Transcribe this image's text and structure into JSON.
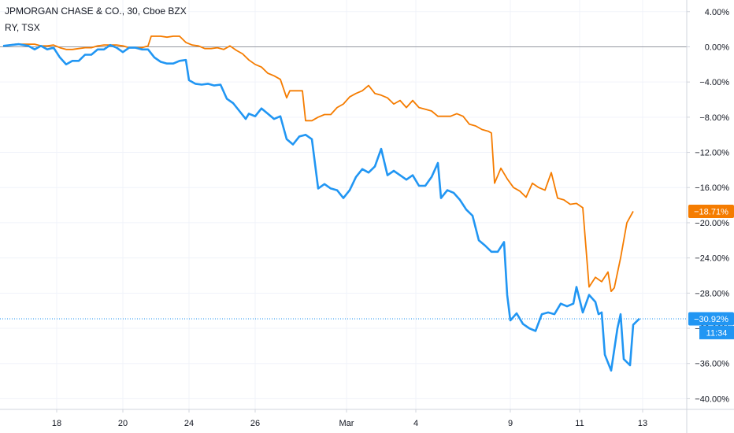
{
  "legend": {
    "main": "JPMORGAN CHASE & CO., 30, Cboe BZX",
    "compare": "RY, TSX"
  },
  "colors": {
    "jpm": "#2196f3",
    "ry": "#f57c00",
    "grid": "#f0f3fa",
    "axis": "#d1d4dc",
    "zero_line": "#9598a1",
    "text": "#131722"
  },
  "labels": {
    "jpm_last": "−30.92%",
    "ry_last": "−18.71%",
    "countdown": "11:34"
  },
  "chart_data": {
    "type": "line",
    "title": "JPMORGAN CHASE & CO., 30, Cboe BZX",
    "ylim": [
      -40.5,
      5.5
    ],
    "y_scale": "percent",
    "y_ticks": [
      {
        "value": 4,
        "label": "4.00%"
      },
      {
        "value": 0,
        "label": "0.00%"
      },
      {
        "value": -4,
        "label": "−4.00%"
      },
      {
        "value": -8,
        "label": "−8.00%"
      },
      {
        "value": -12,
        "label": "−12.00%"
      },
      {
        "value": -16,
        "label": "−16.00%"
      },
      {
        "value": -20,
        "label": "−20.00%"
      },
      {
        "value": -24,
        "label": "−24.00%"
      },
      {
        "value": -28,
        "label": "−28.00%"
      },
      {
        "value": -32,
        "label": "−32.00%"
      },
      {
        "value": -36,
        "label": "−36.00%"
      },
      {
        "value": -40,
        "label": "−40.00%"
      }
    ],
    "x_ticks": [
      {
        "index": 17,
        "label": "18"
      },
      {
        "index": 38,
        "label": "20"
      },
      {
        "index": 59,
        "label": "24"
      },
      {
        "index": 80,
        "label": "26"
      },
      {
        "index": 109,
        "label": "Mar"
      },
      {
        "index": 131,
        "label": "4"
      },
      {
        "index": 161,
        "label": "9"
      },
      {
        "index": 183,
        "label": "11"
      },
      {
        "index": 203,
        "label": "13"
      }
    ],
    "x_count": 216,
    "grid": true,
    "legend": "top-left",
    "series": [
      {
        "name": "JPMORGAN CHASE & CO., 30, Cboe BZX",
        "last": -30.92,
        "points": [
          [
            0,
            0.1
          ],
          [
            5,
            0.3
          ],
          [
            8,
            0.1
          ],
          [
            10,
            -0.3
          ],
          [
            12,
            0.1
          ],
          [
            14,
            -0.3
          ],
          [
            16,
            -0.1
          ],
          [
            18,
            -1.2
          ],
          [
            20,
            -2.0
          ],
          [
            22,
            -1.6
          ],
          [
            24,
            -1.6
          ],
          [
            26,
            -0.9
          ],
          [
            28,
            -0.9
          ],
          [
            30,
            -0.3
          ],
          [
            32,
            -0.3
          ],
          [
            34,
            0.2
          ],
          [
            36,
            -0.1
          ],
          [
            38,
            -0.6
          ],
          [
            40,
            -0.1
          ],
          [
            42,
            -0.1
          ],
          [
            44,
            -0.3
          ],
          [
            46,
            -0.3
          ],
          [
            48,
            -1.2
          ],
          [
            50,
            -1.7
          ],
          [
            52,
            -1.9
          ],
          [
            54,
            -1.9
          ],
          [
            56,
            -1.6
          ],
          [
            58,
            -1.5
          ],
          [
            59,
            -3.8
          ],
          [
            61,
            -4.2
          ],
          [
            63,
            -4.3
          ],
          [
            65,
            -4.2
          ],
          [
            67,
            -4.4
          ],
          [
            69,
            -4.3
          ],
          [
            71,
            -5.9
          ],
          [
            73,
            -6.4
          ],
          [
            75,
            -7.3
          ],
          [
            77,
            -8.2
          ],
          [
            78,
            -7.6
          ],
          [
            80,
            -7.9
          ],
          [
            82,
            -7.0
          ],
          [
            84,
            -7.6
          ],
          [
            86,
            -8.2
          ],
          [
            88,
            -7.9
          ],
          [
            90,
            -10.5
          ],
          [
            92,
            -11.1
          ],
          [
            94,
            -10.2
          ],
          [
            96,
            -10.0
          ],
          [
            98,
            -10.5
          ],
          [
            100,
            -16.1
          ],
          [
            102,
            -15.6
          ],
          [
            104,
            -16.1
          ],
          [
            106,
            -16.3
          ],
          [
            108,
            -17.2
          ],
          [
            110,
            -16.3
          ],
          [
            112,
            -14.8
          ],
          [
            114,
            -13.9
          ],
          [
            116,
            -14.3
          ],
          [
            118,
            -13.6
          ],
          [
            120,
            -11.6
          ],
          [
            122,
            -14.6
          ],
          [
            124,
            -14.1
          ],
          [
            126,
            -14.6
          ],
          [
            128,
            -15.1
          ],
          [
            130,
            -14.6
          ],
          [
            132,
            -15.8
          ],
          [
            134,
            -15.8
          ],
          [
            136,
            -14.8
          ],
          [
            138,
            -13.2
          ],
          [
            139,
            -17.2
          ],
          [
            141,
            -16.3
          ],
          [
            143,
            -16.6
          ],
          [
            145,
            -17.4
          ],
          [
            147,
            -18.5
          ],
          [
            149,
            -19.2
          ],
          [
            151,
            -22.0
          ],
          [
            153,
            -22.6
          ],
          [
            155,
            -23.3
          ],
          [
            157,
            -23.3
          ],
          [
            159,
            -22.2
          ],
          [
            160,
            -28.2
          ],
          [
            161,
            -31.1
          ],
          [
            163,
            -30.3
          ],
          [
            165,
            -31.5
          ],
          [
            167,
            -32.0
          ],
          [
            169,
            -32.3
          ],
          [
            171,
            -30.4
          ],
          [
            173,
            -30.2
          ],
          [
            175,
            -30.4
          ],
          [
            177,
            -29.2
          ],
          [
            179,
            -29.5
          ],
          [
            181,
            -29.2
          ],
          [
            182,
            -27.3
          ],
          [
            184,
            -30.2
          ],
          [
            186,
            -28.2
          ],
          [
            188,
            -29.0
          ],
          [
            189,
            -30.4
          ],
          [
            190,
            -30.2
          ],
          [
            191,
            -35.0
          ],
          [
            193,
            -36.8
          ],
          [
            195,
            -32.0
          ],
          [
            196,
            -30.4
          ],
          [
            197,
            -35.5
          ],
          [
            199,
            -36.2
          ],
          [
            200,
            -31.6
          ],
          [
            202,
            -30.9
          ]
        ]
      },
      {
        "name": "RY, TSX",
        "last": -18.71,
        "points": [
          [
            0,
            0.1
          ],
          [
            4,
            0.3
          ],
          [
            6,
            0.3
          ],
          [
            8,
            0.3
          ],
          [
            10,
            0.3
          ],
          [
            12,
            0.1
          ],
          [
            14,
            0.1
          ],
          [
            16,
            0.2
          ],
          [
            18,
            -0.1
          ],
          [
            20,
            -0.3
          ],
          [
            22,
            -0.3
          ],
          [
            24,
            -0.2
          ],
          [
            26,
            -0.1
          ],
          [
            28,
            -0.1
          ],
          [
            30,
            0.1
          ],
          [
            32,
            0.2
          ],
          [
            34,
            0.2
          ],
          [
            36,
            0.2
          ],
          [
            38,
            0.1
          ],
          [
            40,
            -0.1
          ],
          [
            42,
            -0.1
          ],
          [
            44,
            -0.1
          ],
          [
            46,
            0.1
          ],
          [
            47,
            1.2
          ],
          [
            50,
            1.2
          ],
          [
            52,
            1.1
          ],
          [
            54,
            1.2
          ],
          [
            56,
            1.2
          ],
          [
            58,
            0.5
          ],
          [
            60,
            0.2
          ],
          [
            62,
            0.1
          ],
          [
            64,
            -0.2
          ],
          [
            66,
            -0.2
          ],
          [
            68,
            -0.1
          ],
          [
            70,
            -0.3
          ],
          [
            72,
            0.1
          ],
          [
            74,
            -0.4
          ],
          [
            76,
            -0.8
          ],
          [
            78,
            -1.5
          ],
          [
            80,
            -2.0
          ],
          [
            82,
            -2.3
          ],
          [
            84,
            -3.0
          ],
          [
            86,
            -3.3
          ],
          [
            88,
            -3.7
          ],
          [
            90,
            -5.8
          ],
          [
            91,
            -5.0
          ],
          [
            93,
            -5.0
          ],
          [
            95,
            -5.0
          ],
          [
            96,
            -8.4
          ],
          [
            98,
            -8.4
          ],
          [
            100,
            -8.0
          ],
          [
            102,
            -7.7
          ],
          [
            104,
            -7.7
          ],
          [
            106,
            -6.9
          ],
          [
            108,
            -6.5
          ],
          [
            110,
            -5.7
          ],
          [
            112,
            -5.3
          ],
          [
            114,
            -5.0
          ],
          [
            116,
            -4.4
          ],
          [
            118,
            -5.3
          ],
          [
            120,
            -5.5
          ],
          [
            122,
            -5.8
          ],
          [
            124,
            -6.5
          ],
          [
            126,
            -6.1
          ],
          [
            128,
            -6.9
          ],
          [
            130,
            -6.1
          ],
          [
            132,
            -6.9
          ],
          [
            134,
            -7.1
          ],
          [
            136,
            -7.3
          ],
          [
            138,
            -7.9
          ],
          [
            140,
            -7.9
          ],
          [
            142,
            -7.9
          ],
          [
            144,
            -7.6
          ],
          [
            146,
            -7.9
          ],
          [
            148,
            -8.8
          ],
          [
            150,
            -9.0
          ],
          [
            152,
            -9.4
          ],
          [
            154,
            -9.6
          ],
          [
            155,
            -9.8
          ],
          [
            156,
            -15.5
          ],
          [
            158,
            -13.8
          ],
          [
            160,
            -15.0
          ],
          [
            162,
            -16.0
          ],
          [
            164,
            -16.4
          ],
          [
            166,
            -17.1
          ],
          [
            168,
            -15.5
          ],
          [
            170,
            -16.0
          ],
          [
            172,
            -16.3
          ],
          [
            174,
            -14.3
          ],
          [
            176,
            -17.2
          ],
          [
            178,
            -17.4
          ],
          [
            180,
            -17.9
          ],
          [
            182,
            -17.8
          ],
          [
            184,
            -18.3
          ],
          [
            186,
            -27.3
          ],
          [
            188,
            -26.2
          ],
          [
            190,
            -26.7
          ],
          [
            192,
            -25.6
          ],
          [
            193,
            -27.8
          ],
          [
            194,
            -27.4
          ],
          [
            196,
            -24.0
          ],
          [
            198,
            -20.0
          ],
          [
            200,
            -18.7
          ]
        ]
      }
    ]
  }
}
